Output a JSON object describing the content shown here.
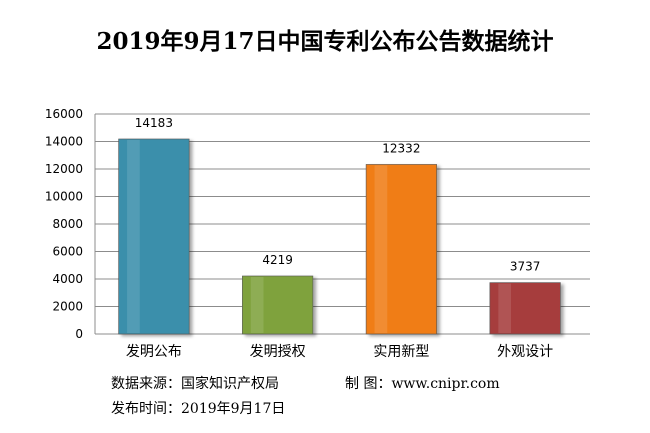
{
  "title": "2019年9月17日中国专利公布公告数据统计",
  "footer": {
    "source": "数据来源：国家知识产权局",
    "maker": "制 图：www.cnipr.com",
    "date": "发布时间：2019年9月17日"
  },
  "chart_data": {
    "type": "bar",
    "categories": [
      "发明公布",
      "发明授权",
      "实用新型",
      "外观设计"
    ],
    "values": [
      14183,
      4219,
      12332,
      3737
    ],
    "ylim": [
      0,
      16000
    ],
    "yticks": [
      0,
      2000,
      4000,
      6000,
      8000,
      10000,
      12000,
      14000,
      16000
    ],
    "grid": true,
    "colors": [
      "#3a8fab",
      "#7fa23e",
      "#f07d16",
      "#a63c3c"
    ]
  }
}
